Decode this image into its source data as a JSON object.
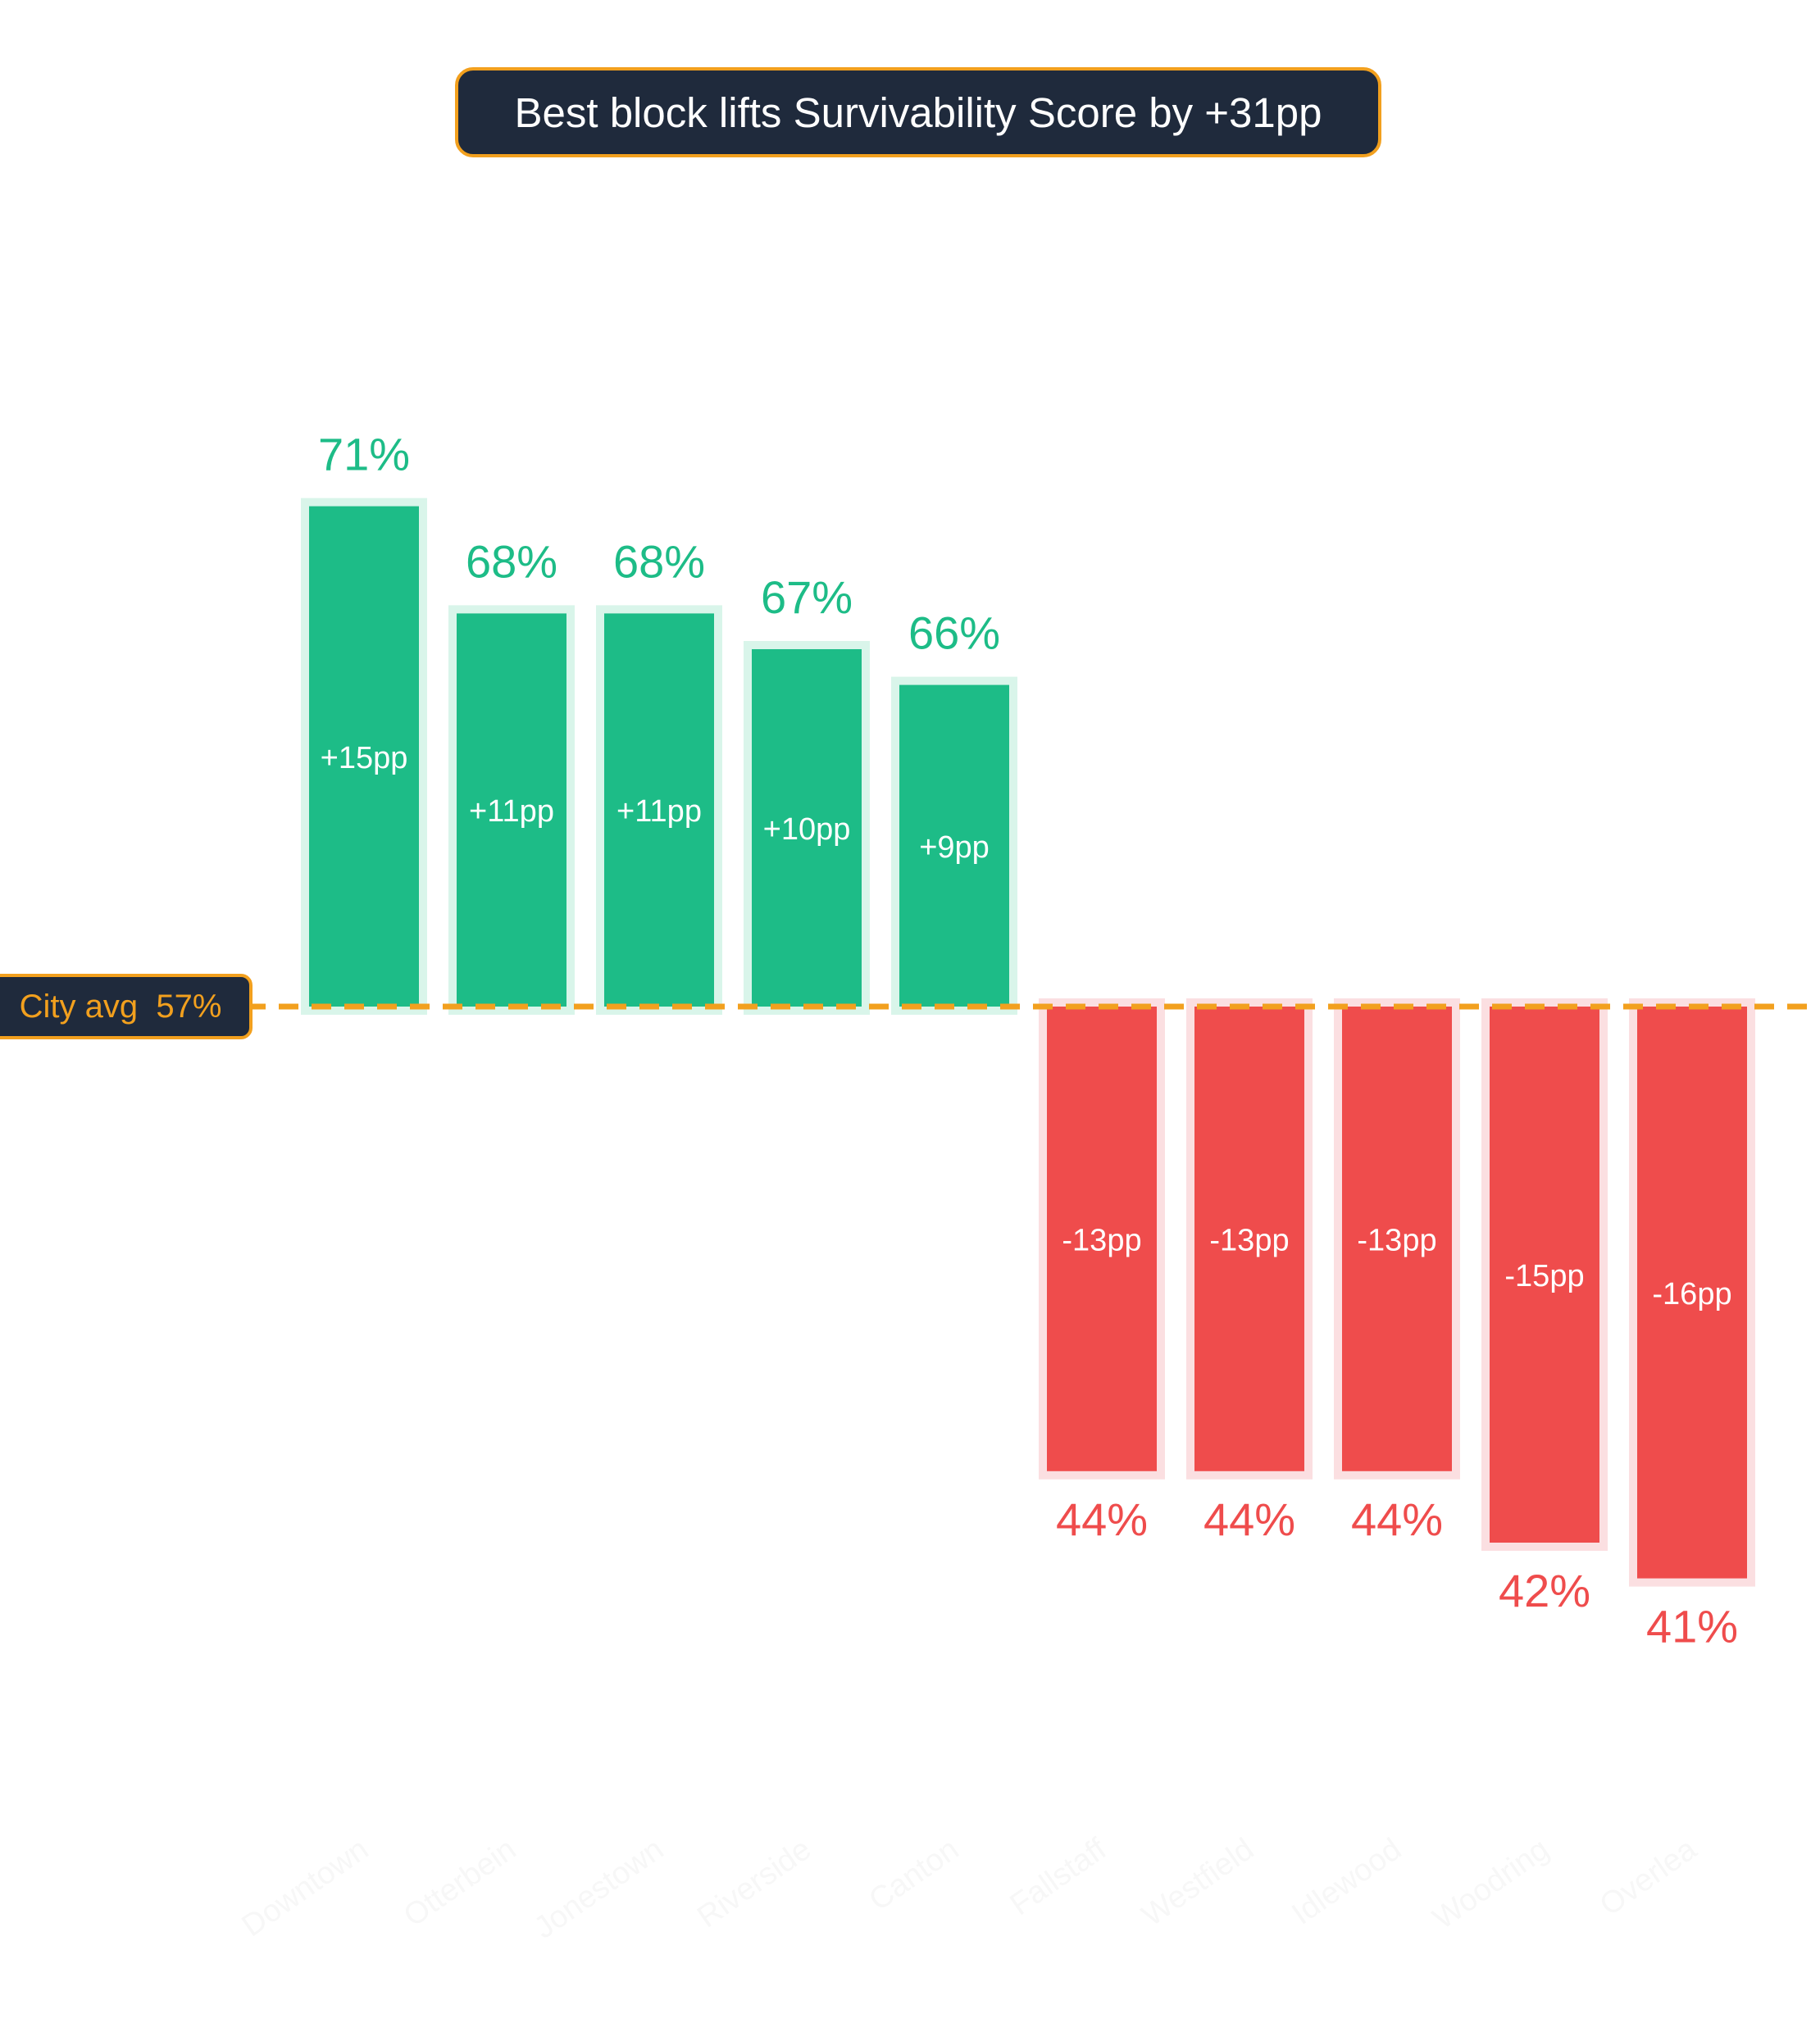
{
  "chart_data": {
    "type": "bar",
    "title": "Best block lifts Survivability Score by +31pp",
    "baseline": {
      "label": "City avg",
      "value_label": "57%",
      "value": 57
    },
    "categories": [
      "Downtown",
      "Otterbein",
      "Jonestown",
      "Riverside",
      "Canton",
      "Fallstaff",
      "Westfield",
      "Idlewood",
      "Woodring",
      "Overlea"
    ],
    "values": [
      71,
      68,
      68,
      67,
      66,
      44,
      44,
      44,
      42,
      41
    ],
    "value_labels": [
      "71%",
      "68%",
      "68%",
      "67%",
      "66%",
      "44%",
      "44%",
      "44%",
      "42%",
      "41%"
    ],
    "deltas": [
      15,
      11,
      11,
      10,
      9,
      -13,
      -13,
      -13,
      -15,
      -16
    ],
    "delta_labels": [
      "+15pp",
      "+11pp",
      "+11pp",
      "+10pp",
      "+9pp",
      "-13pp",
      "-13pp",
      "-13pp",
      "-15pp",
      "-16pp"
    ],
    "colors": {
      "above": "#1dbc87",
      "above_halo": "#d9f5ea",
      "below": "#ef4c4c",
      "below_halo": "#fbdfe1",
      "baseline": "#f2a01e",
      "box": "#1f2a3c",
      "tick_label": "#f7f7f7"
    },
    "legend": "none",
    "grid": false
  }
}
